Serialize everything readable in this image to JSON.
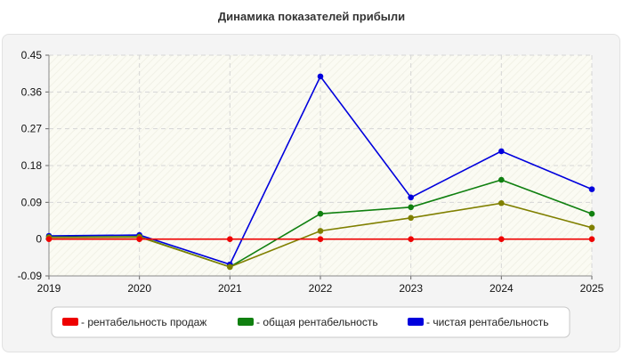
{
  "chart_data": {
    "type": "line",
    "title": "Динамика показателей прибыли",
    "x": [
      "2019",
      "2020",
      "2021",
      "2022",
      "2023",
      "2024",
      "2025"
    ],
    "ylim": [
      -0.09,
      0.45
    ],
    "yticks": [
      "-0.09",
      "0",
      "0.09",
      "0.18",
      "0.27",
      "0.36",
      "0.45"
    ],
    "grid": true,
    "legend_position": "bottom",
    "series": [
      {
        "name": "- рентабельность продаж",
        "color": "#ee0000",
        "values": [
          0.0,
          0.0,
          0.0,
          0.0,
          0.0,
          0.0,
          0.0
        ]
      },
      {
        "name": "- общая рентабельность",
        "color": "#108010",
        "values": [
          0.005,
          0.006,
          -0.068,
          0.062,
          0.078,
          0.145,
          0.062
        ]
      },
      {
        "name": "- чистая рентабельность",
        "color": "#0000dd",
        "values": [
          0.008,
          0.01,
          -0.062,
          0.398,
          0.102,
          0.215,
          0.122
        ]
      }
    ],
    "overlap_series_color": "#808000",
    "overlap_series_values": [
      0.004,
      0.005,
      -0.068,
      0.02,
      0.052,
      0.088,
      0.028
    ]
  }
}
